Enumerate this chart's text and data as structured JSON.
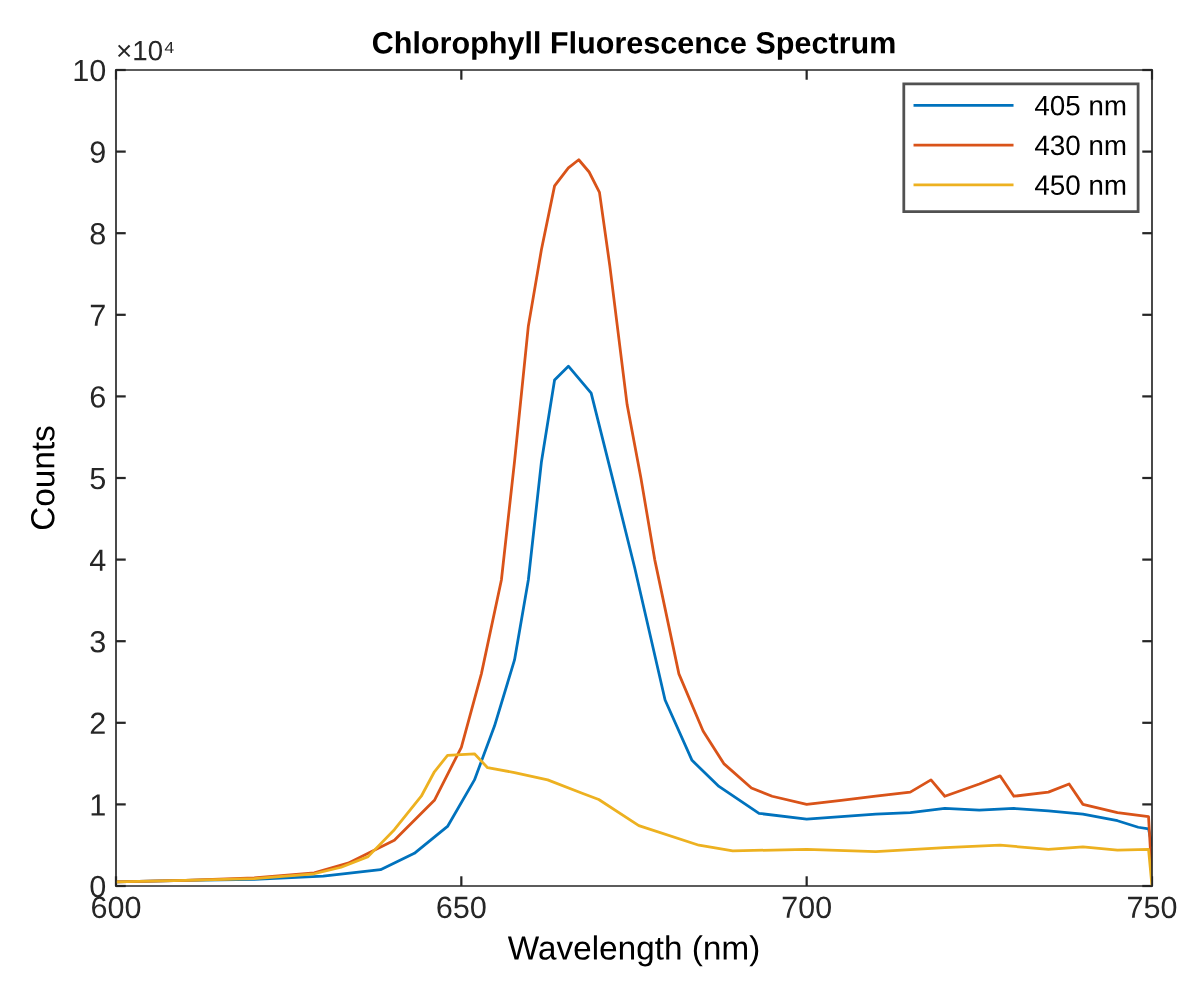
{
  "chart_data": {
    "type": "line",
    "title": "Chlorophyll Fluorescence Spectrum",
    "xlabel": "Wavelength (nm)",
    "ylabel": "Counts",
    "annotations": [
      "×10⁴"
    ],
    "xlim": [
      600,
      750
    ],
    "ylim": [
      0,
      10
    ],
    "xticks": [
      600,
      650,
      700,
      750
    ],
    "yticks": [
      0,
      1,
      2,
      3,
      4,
      5,
      6,
      7,
      8,
      9,
      10
    ],
    "grid": false,
    "legend": "top right",
    "marker": "none",
    "line_style": "solid",
    "series": [
      {
        "name": "405 nm",
        "color": "#0072bd",
        "x": [
          600,
          610,
          620,
          630,
          638.3,
          643.2,
          648,
          651.9,
          654.8,
          657.7,
          659.7,
          661.6,
          663.5,
          665.5,
          668.8,
          671.7,
          675.1,
          679.5,
          683.4,
          687.3,
          693.1,
          700,
          705,
          710,
          715,
          720,
          725,
          730,
          735,
          740,
          745,
          748,
          749.5,
          750
        ],
        "values": [
          0.05,
          0.07,
          0.08,
          0.12,
          0.2,
          0.4,
          0.73,
          1.3,
          1.96,
          2.77,
          3.75,
          5.2,
          6.2,
          6.37,
          6.04,
          5.06,
          3.9,
          2.28,
          1.54,
          1.22,
          0.89,
          0.82,
          0.85,
          0.88,
          0.9,
          0.95,
          0.93,
          0.95,
          0.92,
          0.88,
          0.8,
          0.72,
          0.7,
          0.5
        ]
      },
      {
        "name": "430 nm",
        "color": "#d95319",
        "x": [
          600,
          610,
          620,
          628.7,
          633.6,
          640.3,
          646.1,
          650,
          652.9,
          655.8,
          657.7,
          659.7,
          661.6,
          663.5,
          665.5,
          667,
          668.5,
          670,
          671.5,
          674,
          676,
          678,
          681.5,
          685,
          688,
          692,
          695,
          700,
          705,
          710,
          715,
          718,
          720,
          725,
          728,
          730,
          735,
          738,
          740,
          745,
          749.5,
          750
        ],
        "values": [
          0.05,
          0.07,
          0.1,
          0.16,
          0.28,
          0.56,
          1.05,
          1.7,
          2.6,
          3.75,
          5.2,
          6.86,
          7.8,
          8.58,
          8.8,
          8.9,
          8.75,
          8.5,
          7.6,
          5.9,
          5.0,
          4.0,
          2.6,
          1.9,
          1.5,
          1.2,
          1.1,
          1.0,
          1.05,
          1.1,
          1.15,
          1.3,
          1.1,
          1.25,
          1.35,
          1.1,
          1.15,
          1.25,
          1.0,
          0.9,
          0.85,
          0.1
        ]
      },
      {
        "name": "450 nm",
        "color": "#edb120",
        "x": [
          600,
          610,
          620,
          628.7,
          632.6,
          636.5,
          640.3,
          644.2,
          646.1,
          648,
          651.9,
          653.8,
          657.7,
          662.5,
          667.4,
          669.9,
          675.7,
          684.4,
          689.3,
          700,
          710,
          720,
          728,
          735,
          740,
          745,
          749.5,
          750
        ],
        "values": [
          0.05,
          0.07,
          0.09,
          0.15,
          0.23,
          0.36,
          0.69,
          1.1,
          1.4,
          1.6,
          1.62,
          1.45,
          1.39,
          1.3,
          1.14,
          1.06,
          0.74,
          0.5,
          0.43,
          0.45,
          0.42,
          0.47,
          0.5,
          0.45,
          0.48,
          0.44,
          0.45,
          0.0
        ]
      }
    ]
  }
}
